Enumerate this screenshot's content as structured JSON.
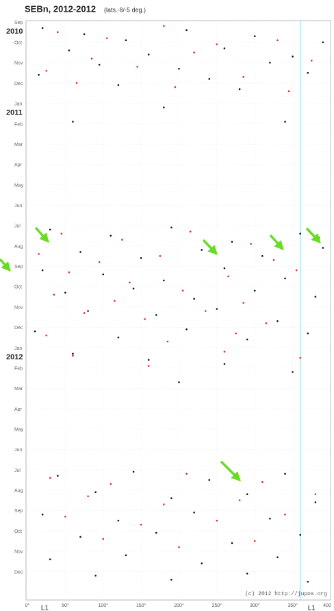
{
  "chart_data": {
    "type": "scatter",
    "title": "SEBn, 2012-2012",
    "subtitle": "(lats.-8/-5 deg.)",
    "credit": "(c) 2012 http://jupos.org",
    "xlim": [
      0,
      400
    ],
    "ylim": [
      0,
      28.4
    ],
    "grid": true,
    "xticks": [
      {
        "value": 0,
        "label": "0°"
      },
      {
        "value": 50,
        "label": "50°"
      },
      {
        "value": 100,
        "label": "100°"
      },
      {
        "value": 150,
        "label": "150°"
      },
      {
        "value": 200,
        "label": "200°"
      },
      {
        "value": 250,
        "label": "250°"
      },
      {
        "value": 300,
        "label": "300°"
      },
      {
        "value": 350,
        "label": "350°"
      },
      400
    ],
    "yticks": [
      {
        "value": 0,
        "label": "Sep"
      },
      {
        "value": 1,
        "label": "Oct"
      },
      {
        "value": 2,
        "label": "Nov"
      },
      {
        "value": 3,
        "label": "Dec"
      },
      {
        "value": 4,
        "label": "Jan"
      },
      {
        "value": 5,
        "label": "Feb"
      },
      {
        "value": 6,
        "label": "Mar"
      },
      {
        "value": 7,
        "label": "Apr"
      },
      {
        "value": 8,
        "label": "May"
      },
      {
        "value": 9,
        "label": "Jun"
      },
      {
        "value": 10,
        "label": "Jul"
      },
      {
        "value": 11,
        "label": "Aug"
      },
      {
        "value": 12,
        "label": "Sep"
      },
      {
        "value": 13,
        "label": "Oct"
      },
      {
        "value": 14,
        "label": "Nov"
      },
      {
        "value": 15,
        "label": "Dec"
      },
      {
        "value": 16,
        "label": "Jan"
      },
      {
        "value": 17,
        "label": "Feb"
      },
      {
        "value": 18,
        "label": "Mar"
      },
      {
        "value": 19,
        "label": "Apr"
      },
      {
        "value": 20,
        "label": "May"
      },
      {
        "value": 21,
        "label": "Jun"
      },
      {
        "value": 22,
        "label": "Jul"
      },
      {
        "value": 23,
        "label": "Aug"
      },
      {
        "value": 24,
        "label": "Sep"
      },
      {
        "value": 25,
        "label": "Oct"
      },
      {
        "value": 26,
        "label": "Nov"
      },
      {
        "value": 27,
        "label": "Dec"
      }
    ],
    "year_ticks": [
      {
        "value": 0,
        "label": "2010"
      },
      {
        "value": 4,
        "label": "2011"
      },
      {
        "value": 16,
        "label": "2012"
      }
    ],
    "vline": {
      "value": 360,
      "color": "#7fd8e8"
    },
    "annotations": [
      {
        "text": "L1",
        "x": 23
      },
      {
        "text": "L1",
        "x": 375
      }
    ],
    "series": [
      {
        "color": "#111111",
        "x": [
          20,
          75,
          130,
          210,
          300,
          390,
          55,
          160,
          260,
          350,
          95,
          200,
          320,
          15,
          240,
          370,
          120,
          280,
          180,
          340,
          60,
          30,
          110,
          190,
          270,
          360,
          70,
          150,
          230,
          310,
          390,
          20,
          100,
          180,
          260,
          340,
          50,
          140,
          220,
          300,
          380,
          80,
          170,
          250,
          330,
          10,
          120,
          210,
          290,
          370,
          60,
          160,
          260,
          350,
          200,
          40,
          140,
          240,
          340,
          90,
          190,
          290,
          380,
          20,
          120,
          220,
          320,
          70,
          170,
          270,
          360,
          30,
          130,
          230,
          330,
          90,
          190,
          290,
          370
        ],
        "values": [
          0.3,
          0.6,
          0.9,
          0.4,
          0.7,
          1.0,
          1.4,
          1.6,
          1.3,
          1.7,
          2.1,
          2.3,
          2.0,
          2.6,
          2.8,
          2.5,
          3.1,
          3.3,
          4.2,
          4.9,
          4.9,
          10.2,
          10.5,
          10.1,
          10.8,
          10.4,
          11.3,
          11.6,
          11.2,
          11.5,
          11.1,
          12.2,
          12.4,
          12.7,
          12.1,
          12.6,
          13.3,
          13.1,
          13.6,
          13.2,
          13.5,
          14.2,
          14.4,
          14.1,
          14.7,
          15.2,
          15.5,
          15.1,
          15.6,
          15.3,
          16.3,
          16.6,
          16.8,
          17.2,
          17.7,
          22.3,
          22.1,
          22.5,
          22.2,
          23.1,
          23.4,
          23.2,
          23.6,
          24.2,
          24.5,
          24.1,
          24.4,
          25.3,
          25.1,
          25.6,
          25.2,
          26.4,
          26.2,
          26.6,
          26.3,
          27.2,
          27.4,
          27.1,
          27.5
        ]
      },
      {
        "color": "#e0281e",
        "x": [
          40,
          105,
          180,
          250,
          330,
          85,
          220,
          375,
          25,
          145,
          285,
          65,
          195,
          345,
          45,
          125,
          215,
          295,
          385,
          15,
          95,
          175,
          245,
          325,
          55,
          135,
          265,
          355,
          35,
          115,
          205,
          285,
          75,
          155,
          235,
          315,
          25,
          185,
          275,
          60,
          160,
          260,
          360,
          30,
          110,
          210,
          310,
          80,
          180,
          280,
          380,
          50,
          150,
          250,
          340,
          100,
          200,
          300
        ],
        "values": [
          0.5,
          0.8,
          0.2,
          1.1,
          0.9,
          1.8,
          1.5,
          1.9,
          2.4,
          2.2,
          2.7,
          3.0,
          3.2,
          3.4,
          10.4,
          10.7,
          10.3,
          10.9,
          10.6,
          11.4,
          11.8,
          11.5,
          11.2,
          11.7,
          12.3,
          12.8,
          12.5,
          12.2,
          13.4,
          13.7,
          13.2,
          13.8,
          14.3,
          14.6,
          14.2,
          14.8,
          15.4,
          15.7,
          15.3,
          16.4,
          16.9,
          16.2,
          16.5,
          22.4,
          22.7,
          22.2,
          22.6,
          23.3,
          23.7,
          23.5,
          23.2,
          24.3,
          24.7,
          24.5,
          24.2,
          25.4,
          25.8,
          25.5
        ]
      }
    ]
  }
}
